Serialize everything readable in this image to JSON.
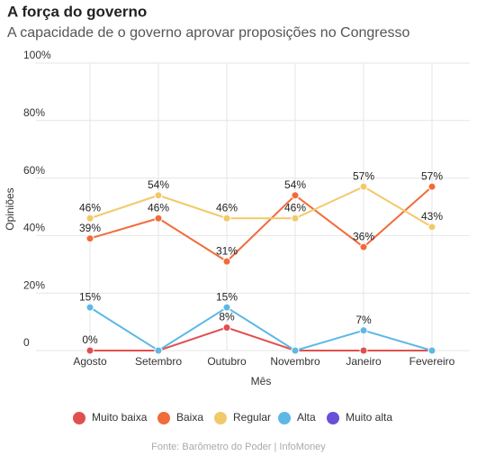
{
  "chart_data": {
    "type": "line",
    "title": "A força do governo",
    "subtitle": "A capacidade de o governo aprovar proposições no Congresso",
    "x_label": "Mês",
    "y_label": "Opiniões",
    "source": "Fonte: Barômetro do Poder | InfoMoney",
    "categories": [
      "Agosto",
      "Setembro",
      "Outubro",
      "Novembro",
      "Janeiro",
      "Fevereiro"
    ],
    "ylim": [
      0,
      100
    ],
    "yticks": [
      0,
      {
        "value": 20,
        "label": "20%"
      },
      {
        "value": 40,
        "label": "40%"
      },
      {
        "value": 60,
        "label": "60%"
      },
      {
        "value": 80,
        "label": "80%"
      },
      {
        "value": 100,
        "label": "100%"
      }
    ],
    "grid": true,
    "legend": "bottom",
    "series": [
      {
        "name": "Muito baixa",
        "color": "#e0504e",
        "values": [
          0,
          0,
          8,
          0,
          0,
          0
        ],
        "value_labels": [
          "0%",
          null,
          "8%",
          null,
          null,
          null
        ]
      },
      {
        "name": "Baixa",
        "color": "#f26b3a",
        "values": [
          39,
          46,
          31,
          54,
          36,
          57
        ],
        "value_labels": [
          "39%",
          "46%",
          "31%",
          "54%",
          "36%",
          "57%"
        ]
      },
      {
        "name": "Regular",
        "color": "#f2c96a",
        "values": [
          46,
          54,
          46,
          46,
          57,
          43
        ],
        "value_labels": [
          "46%",
          "54%",
          "46%",
          "46%",
          "57%",
          "43%"
        ]
      },
      {
        "name": "Alta",
        "color": "#5db8e6",
        "values": [
          15,
          0,
          15,
          0,
          7,
          0
        ],
        "value_labels": [
          "15%",
          null,
          "15%",
          null,
          "7%",
          null
        ]
      },
      {
        "name": "Muito alta",
        "color": "#6a4fd8",
        "values": [
          null,
          null,
          null,
          null,
          null,
          null
        ],
        "value_labels": [
          null,
          null,
          null,
          null,
          null,
          null
        ]
      }
    ]
  }
}
